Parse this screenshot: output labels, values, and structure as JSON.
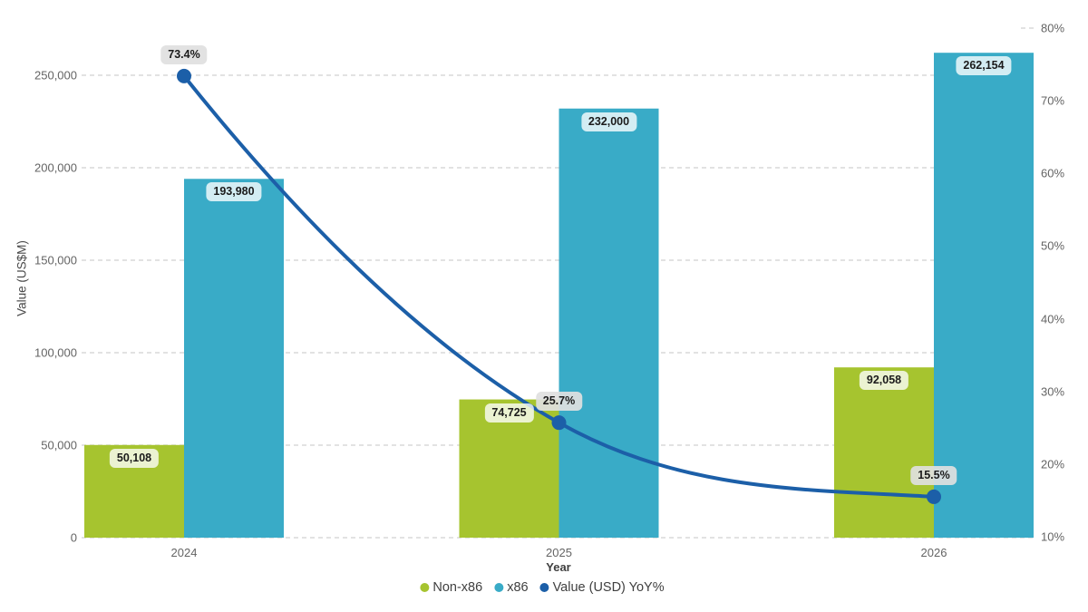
{
  "chart": {
    "y_axis_title": "Value (US$M)",
    "x_axis_title": "Year",
    "left_ticks": [
      "0",
      "50,000",
      "100,000",
      "150,000",
      "200,000",
      "250,000"
    ],
    "right_ticks": [
      "10%",
      "20%",
      "30%",
      "40%",
      "50%",
      "60%",
      "70%",
      "80%"
    ]
  },
  "chart_data": {
    "type": "combo",
    "subtype": "clustered-bars-with-line",
    "categories": [
      "2024",
      "2025",
      "2026"
    ],
    "series": [
      {
        "name": "Non-x86",
        "type": "bar",
        "color": "#a6c42f",
        "values": [
          50108,
          74725,
          92058
        ],
        "labels": [
          "50,108",
          "74,725",
          "92,058"
        ],
        "axis": "left"
      },
      {
        "name": "x86",
        "type": "bar",
        "color": "#39abc7",
        "values": [
          193980,
          232000,
          262154
        ],
        "labels": [
          "193,980",
          "232,000",
          "262,154"
        ],
        "axis": "left"
      },
      {
        "name": "Value (USD) YoY%",
        "type": "line",
        "color": "#1c5fa8",
        "values": [
          73.4,
          25.7,
          15.5
        ],
        "labels": [
          "73.4%",
          "25.7%",
          "15.5%"
        ],
        "axis": "right"
      }
    ],
    "title": "",
    "xlabel": "Year",
    "ylabel": "Value (US$M)",
    "ylabel_right": "",
    "ylim_left": [
      0,
      250000
    ],
    "ylim_right": [
      10,
      80
    ],
    "grid": "dashed-horizontal",
    "legend_position": "bottom",
    "data_label_style": {
      "bar_label_bg": "rgba(255,255,255,0.78)",
      "line_label_bg": "#e2e2e2",
      "text_color": "#1b1b1b"
    }
  }
}
